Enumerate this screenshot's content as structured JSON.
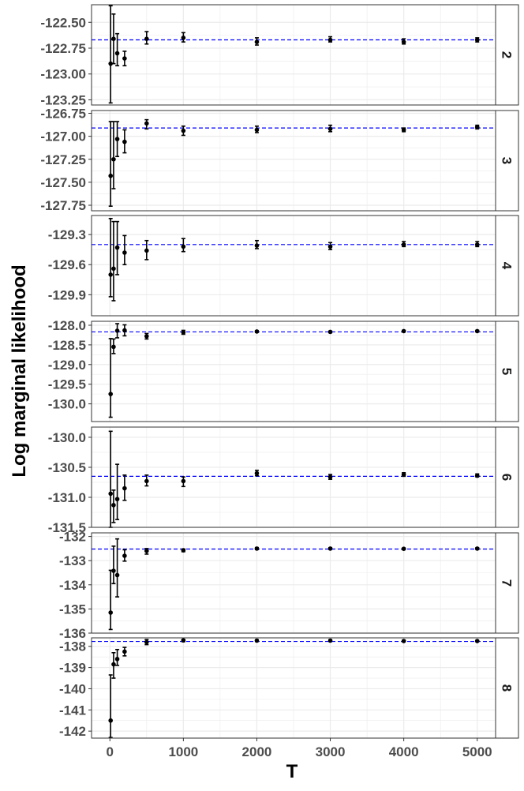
{
  "chart_data": {
    "type": "scatter",
    "xlabel": "T",
    "ylabel": "Log marginal likelihood",
    "x_ticks": [
      0,
      1000,
      2000,
      3000,
      4000,
      5000
    ],
    "xlim": [
      -250,
      5250
    ],
    "x": [
      10,
      50,
      100,
      200,
      500,
      1000,
      2000,
      3000,
      4000,
      5000
    ],
    "colors": {
      "reference_line": "#0000ff",
      "points": "#000000",
      "grid": "#ebebeb",
      "strip_bg": "#ffffff",
      "strip_border": "#333333"
    },
    "panels": [
      {
        "label": "2",
        "ylim": [
          -123.3,
          -122.33
        ],
        "y_ticks": [
          -123.25,
          -123.0,
          -122.75,
          -122.5
        ],
        "y_tick_labels": [
          "-123.25",
          "-123.00",
          "-122.75",
          "-122.50"
        ],
        "reference": -122.67,
        "mean": [
          -122.9,
          -122.66,
          -122.8,
          -122.85,
          -122.66,
          -122.65,
          -122.69,
          -122.67,
          -122.69,
          -122.67
        ],
        "lower": [
          -123.28,
          -122.9,
          -122.92,
          -122.92,
          -122.71,
          -122.69,
          -122.72,
          -122.69,
          -122.71,
          -122.69
        ],
        "upper": [
          -122.34,
          -122.42,
          -122.61,
          -122.78,
          -122.59,
          -122.6,
          -122.65,
          -122.64,
          -122.66,
          -122.65
        ]
      },
      {
        "label": "3",
        "ylim": [
          -127.81,
          -126.72
        ],
        "y_ticks": [
          -127.75,
          -127.5,
          -127.25,
          -127.0,
          -126.75
        ],
        "y_tick_labels": [
          "-127.75",
          "-127.50",
          "-127.25",
          "-127.00",
          "-126.75"
        ],
        "reference": -126.91,
        "mean": [
          -127.43,
          -127.25,
          -127.03,
          -127.06,
          -126.86,
          -126.94,
          -126.93,
          -126.92,
          -126.93,
          -126.9
        ],
        "lower": [
          -127.76,
          -127.57,
          -127.22,
          -127.18,
          -126.92,
          -126.99,
          -126.96,
          -126.95,
          -126.95,
          -126.92
        ],
        "upper": [
          -126.84,
          -126.84,
          -126.84,
          -126.93,
          -126.82,
          -126.89,
          -126.89,
          -126.88,
          -126.91,
          -126.88
        ]
      },
      {
        "label": "4",
        "ylim": [
          -130.11,
          -129.11
        ],
        "y_ticks": [
          -129.9,
          -129.6,
          -129.3
        ],
        "y_tick_labels": [
          "-129.9",
          "-129.6",
          "-129.3"
        ],
        "reference": -129.4,
        "mean": [
          -129.7,
          -129.64,
          -129.43,
          -129.48,
          -129.46,
          -129.42,
          -129.41,
          -129.42,
          -129.4,
          -129.4
        ],
        "lower": [
          -129.92,
          -129.96,
          -129.7,
          -129.6,
          -129.55,
          -129.47,
          -129.44,
          -129.45,
          -129.42,
          -129.42
        ],
        "upper": [
          -129.14,
          -129.17,
          -129.17,
          -129.31,
          -129.36,
          -129.34,
          -129.36,
          -129.38,
          -129.37,
          -129.37
        ]
      },
      {
        "label": "5",
        "ylim": [
          -130.45,
          -127.9
        ],
        "y_ticks": [
          -130.0,
          -129.5,
          -129.0,
          -128.5,
          -128.0
        ],
        "y_tick_labels": [
          "-130.0",
          "-129.5",
          "-129.0",
          "-128.5",
          "-128.0"
        ],
        "reference": -128.17,
        "mean": [
          -129.75,
          -128.55,
          -128.14,
          -128.13,
          -128.28,
          -128.18,
          -128.16,
          -128.17,
          -128.15,
          -128.15
        ],
        "lower": [
          -130.34,
          -128.72,
          -128.32,
          -128.27,
          -128.35,
          -128.23,
          -128.18,
          -128.19,
          -128.17,
          -128.17
        ],
        "upper": [
          -128.34,
          -128.35,
          -127.96,
          -127.99,
          -128.21,
          -128.13,
          -128.14,
          -128.15,
          -128.13,
          -128.13
        ]
      },
      {
        "label": "6",
        "ylim": [
          -131.5,
          -129.83
        ],
        "y_ticks": [
          -131.5,
          -131.0,
          -130.5,
          -130.0
        ],
        "y_tick_labels": [
          "-131.5",
          "-131.0",
          "-130.5",
          "-130.0"
        ],
        "reference": -130.65,
        "mean": [
          -130.94,
          -131.13,
          -131.03,
          -130.85,
          -130.73,
          -130.73,
          -130.6,
          -130.66,
          -130.62,
          -130.64
        ],
        "lower": [
          -131.5,
          -131.42,
          -131.37,
          -131.05,
          -130.81,
          -130.82,
          -130.64,
          -130.7,
          -130.65,
          -130.66
        ],
        "upper": [
          -129.9,
          -130.88,
          -130.45,
          -130.63,
          -130.63,
          -130.66,
          -130.55,
          -130.62,
          -130.59,
          -130.61
        ]
      },
      {
        "label": "7",
        "ylim": [
          -136.0,
          -131.85
        ],
        "y_ticks": [
          -136,
          -135,
          -134,
          -133,
          -132
        ],
        "y_tick_labels": [
          "-136",
          "-135",
          "-134",
          "-133",
          "-132"
        ],
        "reference": -132.52,
        "mean": [
          -135.15,
          -133.42,
          -133.6,
          -132.8,
          -132.6,
          -132.57,
          -132.5,
          -132.5,
          -132.51,
          -132.5
        ],
        "lower": [
          -135.85,
          -133.95,
          -134.5,
          -133.02,
          -132.73,
          -132.63,
          -132.54,
          -132.53,
          -132.54,
          -132.53
        ],
        "upper": [
          -133.4,
          -132.4,
          -132.1,
          -132.55,
          -132.5,
          -132.52,
          -132.46,
          -132.47,
          -132.48,
          -132.47
        ]
      },
      {
        "label": "8",
        "ylim": [
          -142.33,
          -137.6
        ],
        "y_ticks": [
          -142,
          -141,
          -140,
          -139,
          -138
        ],
        "y_tick_labels": [
          "-142",
          "-141",
          "-140",
          "-139",
          "-138"
        ],
        "reference": -137.77,
        "mean": [
          -141.5,
          -138.85,
          -138.6,
          -138.25,
          -137.8,
          -137.72,
          -137.73,
          -137.73,
          -137.75,
          -137.75
        ],
        "lower": [
          -142.3,
          -139.5,
          -138.9,
          -138.45,
          -137.92,
          -137.78,
          -137.77,
          -137.77,
          -137.78,
          -137.78
        ],
        "upper": [
          -139.35,
          -138.3,
          -138.15,
          -138.05,
          -137.68,
          -137.67,
          -137.69,
          -137.69,
          -137.71,
          -137.72
        ]
      }
    ]
  }
}
